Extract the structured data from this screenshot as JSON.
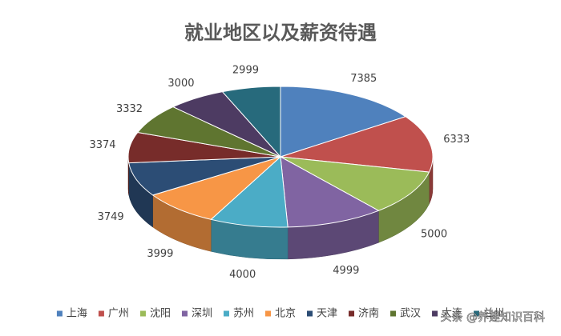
{
  "chart_data": {
    "type": "pie3d",
    "title": "就业地区以及薪资待遇",
    "categories": [
      "上海",
      "广州",
      "沈阳",
      "深圳",
      "苏州",
      "北京",
      "天津",
      "济南",
      "武汉",
      "大连",
      "兰州"
    ],
    "values": [
      7385,
      6333,
      5000,
      4999,
      4000,
      3999,
      3749,
      3374,
      3332,
      3000,
      2999
    ],
    "colors": [
      "#4f81bd",
      "#c0504d",
      "#9bbb59",
      "#8064a2",
      "#4bacc6",
      "#f79646",
      "#2c4d75",
      "#772c2a",
      "#5f7530",
      "#4d3b62",
      "#276a7c"
    ],
    "legend": "bottom",
    "watermark": "头条 @养建知识百科"
  }
}
